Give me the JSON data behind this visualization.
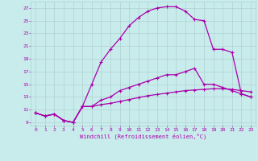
{
  "title": "",
  "xlabel": "Windchill (Refroidissement éolien,°C)",
  "xlim": [
    -0.5,
    23.5
  ],
  "ylim": [
    8.5,
    28
  ],
  "xticks": [
    0,
    1,
    2,
    3,
    4,
    5,
    6,
    7,
    8,
    9,
    10,
    11,
    12,
    13,
    14,
    15,
    16,
    17,
    18,
    19,
    20,
    21,
    22,
    23
  ],
  "yticks": [
    9,
    11,
    13,
    15,
    17,
    19,
    21,
    23,
    25,
    27
  ],
  "bg_color": "#c8ecec",
  "line_color": "#aa00aa",
  "grid_color": "#b0d0d0",
  "line1_x": [
    0,
    1,
    2,
    3,
    4,
    5,
    6,
    7,
    8,
    9,
    10,
    11,
    12,
    13,
    14,
    15,
    16,
    17,
    18,
    19,
    20,
    21,
    22,
    23
  ],
  "line1_y": [
    10.5,
    10.0,
    10.3,
    9.3,
    9.0,
    11.5,
    15.0,
    18.5,
    20.5,
    22.2,
    24.2,
    25.5,
    26.5,
    27.0,
    27.2,
    27.2,
    26.5,
    25.2,
    25.0,
    20.5,
    20.5,
    20.0,
    13.5,
    13.0
  ],
  "line2_x": [
    0,
    1,
    2,
    3,
    4,
    5,
    6,
    7,
    8,
    9,
    10,
    11,
    12,
    13,
    14,
    15,
    16,
    17,
    18,
    19,
    20,
    21,
    22,
    23
  ],
  "line2_y": [
    10.5,
    10.0,
    10.3,
    9.3,
    9.0,
    11.5,
    11.5,
    12.5,
    13.0,
    14.0,
    14.5,
    15.0,
    15.5,
    16.0,
    16.5,
    16.5,
    17.0,
    17.5,
    15.0,
    15.0,
    14.5,
    14.0,
    13.5,
    13.0
  ],
  "line3_x": [
    0,
    1,
    2,
    3,
    4,
    5,
    6,
    7,
    8,
    9,
    10,
    11,
    12,
    13,
    14,
    15,
    16,
    17,
    18,
    19,
    20,
    21,
    22,
    23
  ],
  "line3_y": [
    10.5,
    10.0,
    10.3,
    9.3,
    9.0,
    11.5,
    11.5,
    11.8,
    12.0,
    12.3,
    12.6,
    12.9,
    13.2,
    13.4,
    13.6,
    13.8,
    14.0,
    14.1,
    14.2,
    14.3,
    14.3,
    14.2,
    14.0,
    13.8
  ]
}
